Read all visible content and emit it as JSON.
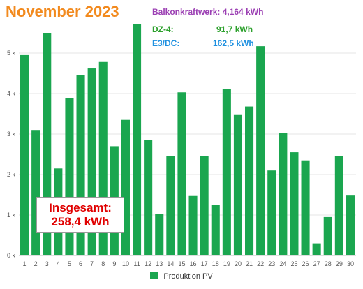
{
  "title": "November 2023",
  "colors": {
    "title": "#f28a1e",
    "bar": "#1aa64f",
    "balkon": "#9b3fb3",
    "dz4": "#2ca02c",
    "e3dc": "#1e90e0",
    "total": "#e00000"
  },
  "annotations": {
    "balkon": {
      "label": "Balkonkraftwerk: 4,164 kWh"
    },
    "dz4": {
      "label": "DZ-4:",
      "value": "91,7 kWh"
    },
    "e3dc": {
      "label": "E3/DC:",
      "value": "162,5 kWh"
    }
  },
  "total": {
    "line1": "Insgesamt:",
    "line2": "258,4 kWh"
  },
  "chart_data": {
    "type": "bar",
    "categories": [
      "1",
      "2",
      "3",
      "4",
      "5",
      "6",
      "7",
      "8",
      "9",
      "10",
      "11",
      "12",
      "13",
      "14",
      "15",
      "16",
      "17",
      "18",
      "19",
      "20",
      "21",
      "22",
      "23",
      "24",
      "25",
      "26",
      "27",
      "28",
      "29",
      "30"
    ],
    "series": [
      {
        "name": "Produktion PV",
        "values": [
          4.95,
          3.1,
          5.5,
          2.15,
          3.88,
          4.45,
          4.62,
          4.78,
          2.7,
          3.35,
          5.72,
          2.85,
          1.03,
          2.46,
          4.03,
          1.47,
          2.45,
          1.25,
          4.12,
          3.47,
          3.68,
          5.17,
          2.1,
          3.03,
          2.55,
          2.35,
          0.3,
          0.95,
          2.45,
          1.48
        ]
      }
    ],
    "yticks": [
      "0 k",
      "1 k",
      "2 k",
      "3 k",
      "4 k",
      "5 k"
    ],
    "ylim": [
      0,
      6
    ],
    "grid": true,
    "legend": "bottom"
  }
}
